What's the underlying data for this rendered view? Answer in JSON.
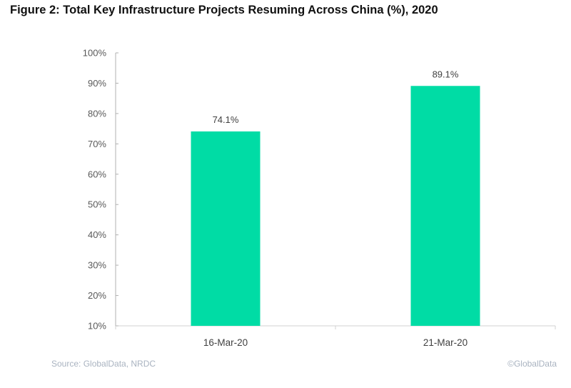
{
  "chart_data": {
    "type": "bar",
    "title": "Figure 2: Total Key Infrastructure Projects Resuming Across China (%), 2020",
    "categories": [
      "16-Mar-20",
      "21-Mar-20"
    ],
    "values": [
      74.1,
      89.1
    ],
    "data_labels": [
      "74.1%",
      "89.1%"
    ],
    "ylim": [
      10,
      100
    ],
    "yticks": [
      "10%",
      "20%",
      "30%",
      "40%",
      "50%",
      "60%",
      "70%",
      "80%",
      "90%",
      "100%"
    ],
    "xlabel": "",
    "ylabel": "",
    "grid": false,
    "bar_color": "#00dca5",
    "source": "Source: GlobalData, NRDC",
    "copyright": "©GlobalData"
  }
}
